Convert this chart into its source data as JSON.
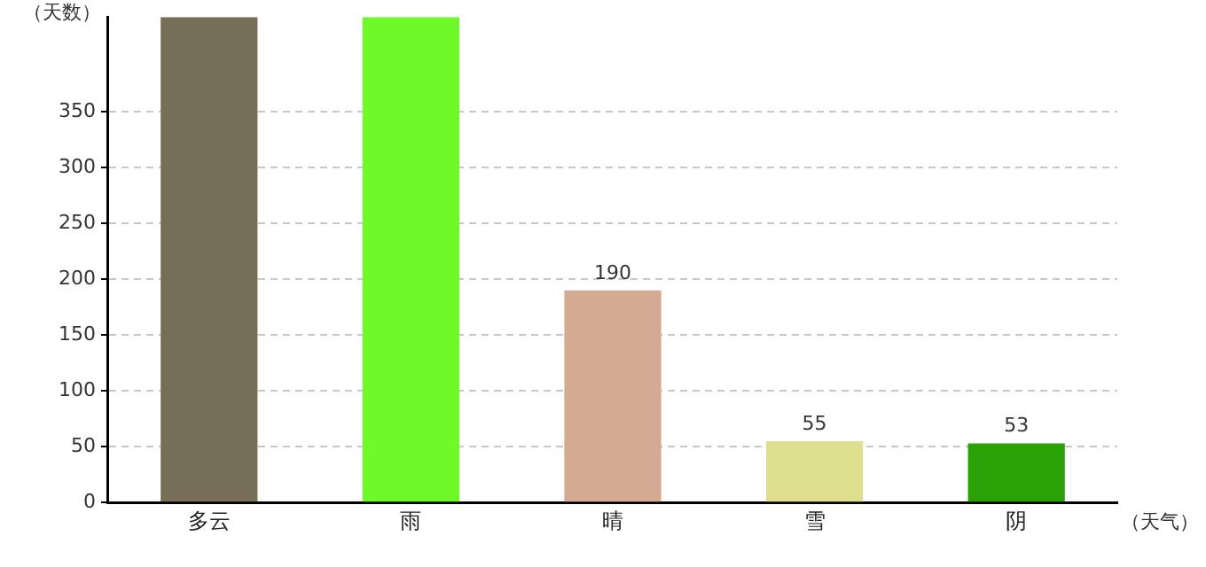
{
  "chart_data": {
    "type": "bar",
    "xlabel": "（天气）",
    "ylabel": "（天数）",
    "categories": [
      "多云",
      "雨",
      "晴",
      "雪",
      "阴"
    ],
    "values": [
      435,
      435,
      190,
      55,
      53
    ],
    "value_labels": [
      null,
      null,
      "190",
      "55",
      "53"
    ],
    "colors": [
      "#766e56",
      "#6ff928",
      "#d4aa92",
      "#dddf8f",
      "#2aa104"
    ],
    "ylim": [
      0,
      435
    ],
    "yticks": [
      0,
      50,
      100,
      150,
      200,
      250,
      300,
      350
    ],
    "grid": "y",
    "legend": false
  }
}
